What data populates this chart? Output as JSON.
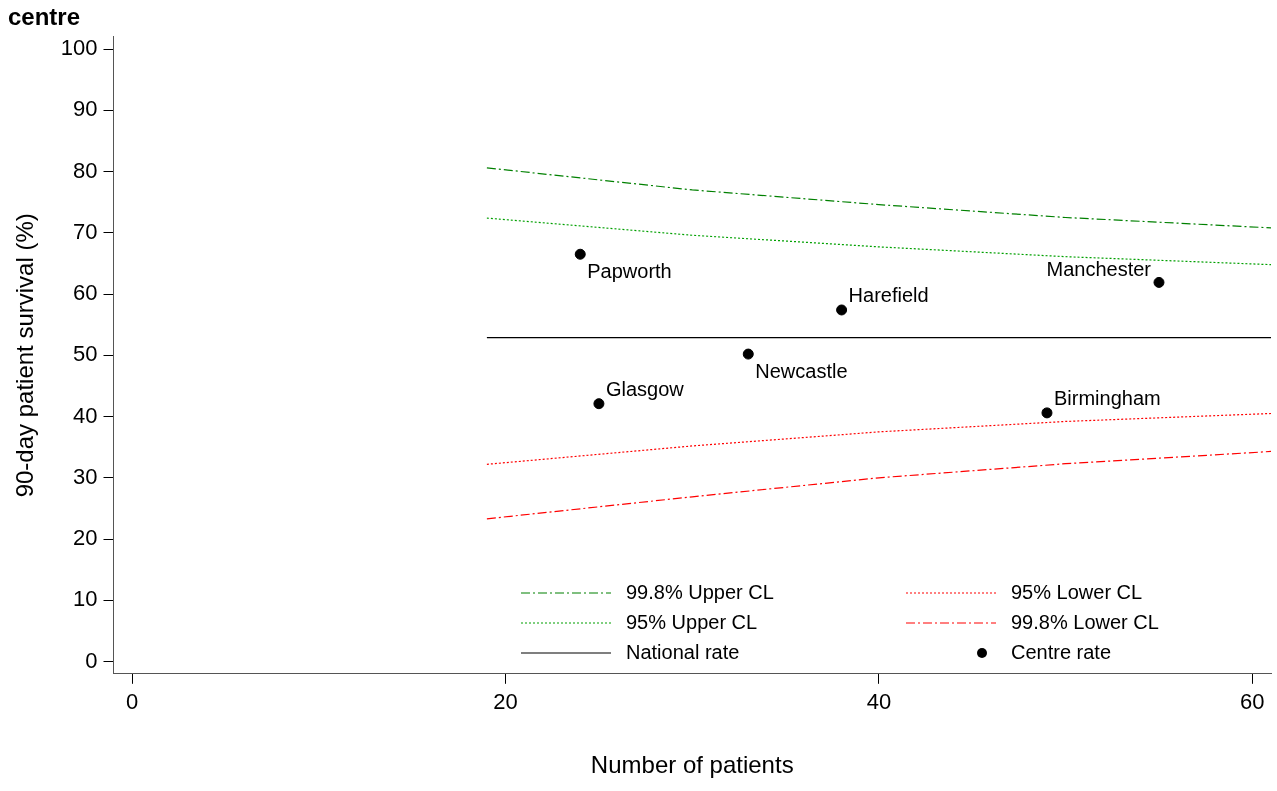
{
  "chart_data": {
    "type": "line",
    "title": "centre",
    "xlabel": "Number of patients",
    "ylabel": "90-day patient survival (%)",
    "xlim": [
      -1,
      61
    ],
    "xticks": [
      0,
      20,
      40,
      60
    ],
    "ylim": [
      -2,
      102
    ],
    "yticks": [
      0,
      10,
      20,
      30,
      40,
      50,
      60,
      70,
      80,
      90,
      100
    ],
    "grid": false,
    "legend": "bottom right",
    "series": [
      {
        "name": "99.8% Upper CL",
        "color": "#008000",
        "line_style": "dashed",
        "x": [
          19,
          30,
          40,
          50,
          61
        ],
        "values": [
          80.6,
          77.0,
          74.6,
          72.5,
          70.8
        ]
      },
      {
        "name": "95% Upper CL",
        "color": "#00a000",
        "line_style": "dotted",
        "x": [
          19,
          30,
          40,
          50,
          61
        ],
        "values": [
          72.4,
          69.6,
          67.7,
          66.1,
          64.8
        ]
      },
      {
        "name": "National rate",
        "color": "#000000",
        "line_style": "solid",
        "x": [
          19,
          61
        ],
        "values": [
          52.9,
          52.9
        ]
      },
      {
        "name": "95% Lower CL",
        "color": "#ff0000",
        "line_style": "dotted",
        "x": [
          19,
          30,
          40,
          50,
          61
        ],
        "values": [
          32.2,
          35.2,
          37.5,
          39.2,
          40.5
        ]
      },
      {
        "name": "99.8% Lower CL",
        "color": "#ff0000",
        "line_style": "dashed",
        "x": [
          19,
          30,
          40,
          50,
          61
        ],
        "values": [
          23.3,
          26.9,
          30.0,
          32.3,
          34.3
        ]
      },
      {
        "name": "Centre rate",
        "type": "scatter",
        "marker": "circle",
        "color": "#000000",
        "x": [
          24,
          25,
          33,
          38,
          49,
          55
        ],
        "values": [
          66.5,
          42.1,
          50.2,
          57.4,
          40.6,
          61.9
        ]
      }
    ],
    "annotations": [
      {
        "text": "Papworth",
        "x": 24,
        "y": 66.5
      },
      {
        "text": "Glasgow",
        "x": 25,
        "y": 42.1
      },
      {
        "text": "Newcastle",
        "x": 33,
        "y": 50.2
      },
      {
        "text": "Harefield",
        "x": 38,
        "y": 57.4
      },
      {
        "text": "Birmingham",
        "x": 49,
        "y": 40.6
      },
      {
        "text": "Manchester",
        "x": 55,
        "y": 61.9
      }
    ]
  }
}
